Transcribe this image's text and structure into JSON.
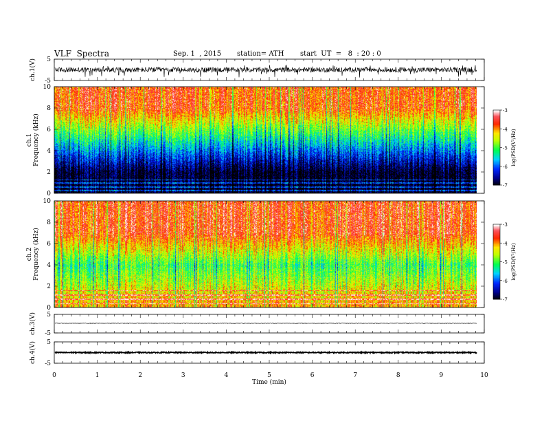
{
  "header": {
    "title": "VLF  Spectra",
    "date": "Sep. 1  , 2015",
    "station": "station= ATH",
    "start": "start  UT  =   8  : 20 : 0"
  },
  "chart_data": [
    {
      "type": "line",
      "panel": "ch.1 waveform",
      "ylabel": "ch.1(V)",
      "ylim": [
        -5,
        5
      ],
      "yticks": [
        "5",
        "-5"
      ],
      "xlim": [
        0,
        10
      ],
      "data_end_min": 9.83,
      "series": [
        {
          "baseline": 0.0,
          "noise_amplitude": 1.2,
          "spike_amplitude": 3.0,
          "color": "#000000"
        }
      ]
    },
    {
      "type": "heatmap",
      "panel": "ch.1 spectrogram",
      "ylabel": "ch.1\nFrequency  (kHz)",
      "ylim": [
        0,
        10
      ],
      "yticks": [
        "0",
        "2",
        "4",
        "6",
        "8",
        "10"
      ],
      "xlim": [
        0,
        10
      ],
      "data_end_min": 9.83,
      "colorbar": {
        "label": "log(PSD(V²/Hz)",
        "ticks": [
          "-3",
          "-4",
          "-5",
          "-6",
          "-7"
        ],
        "range": [
          -7,
          -3
        ]
      },
      "profile": {
        "low_khz": 2.0,
        "low_value": -6.9,
        "mid_khz": 5.0,
        "mid_value": -5.3,
        "high_value": -3.7,
        "hum_lines_khz": [
          0.3,
          0.6,
          1.0,
          1.3
        ]
      }
    },
    {
      "type": "heatmap",
      "panel": "ch.2 spectrogram",
      "ylabel": "ch.2\nFrequency  (kHz)",
      "ylim": [
        0,
        10
      ],
      "yticks": [
        "0",
        "2",
        "4",
        "6",
        "8",
        "10"
      ],
      "xlim": [
        0,
        10
      ],
      "data_end_min": 9.83,
      "colorbar": {
        "label": "log(PSD(V²/Hz)",
        "ticks": [
          "-3",
          "-4",
          "-5",
          "-6",
          "-7"
        ],
        "range": [
          -7,
          -3
        ]
      },
      "profile": {
        "low_khz": 0.5,
        "low_value": -4.0,
        "mid_khz": 4.0,
        "mid_value": -5.0,
        "high_value": -3.6,
        "hum_lines_khz": [
          0.4,
          0.8,
          1.2,
          1.6
        ]
      }
    },
    {
      "type": "line",
      "panel": "ch.3 waveform",
      "ylabel": "ch.3(V)",
      "ylim": [
        -5,
        5
      ],
      "yticks": [
        "5",
        "-5"
      ],
      "xlim": [
        0,
        10
      ],
      "data_end_min": 9.83,
      "series": [
        {
          "baseline": 0.2,
          "noise_amplitude": 0.15,
          "spike_amplitude": 0.0,
          "color": "#000000"
        }
      ]
    },
    {
      "type": "line",
      "panel": "ch.4 waveform",
      "ylabel": "ch.4(V)",
      "ylim": [
        -5,
        5
      ],
      "yticks": [
        "5",
        "-5"
      ],
      "xlim": [
        0,
        10
      ],
      "data_end_min": 9.83,
      "series": [
        {
          "baseline": 0.0,
          "noise_amplitude": 0.25,
          "spike_amplitude": 0.0,
          "color": "#000000",
          "thick": true
        }
      ]
    }
  ],
  "xaxis": {
    "label": "Time  (min)",
    "ticks": [
      "0",
      "1",
      "2",
      "3",
      "4",
      "5",
      "6",
      "7",
      "8",
      "9",
      "10"
    ]
  }
}
